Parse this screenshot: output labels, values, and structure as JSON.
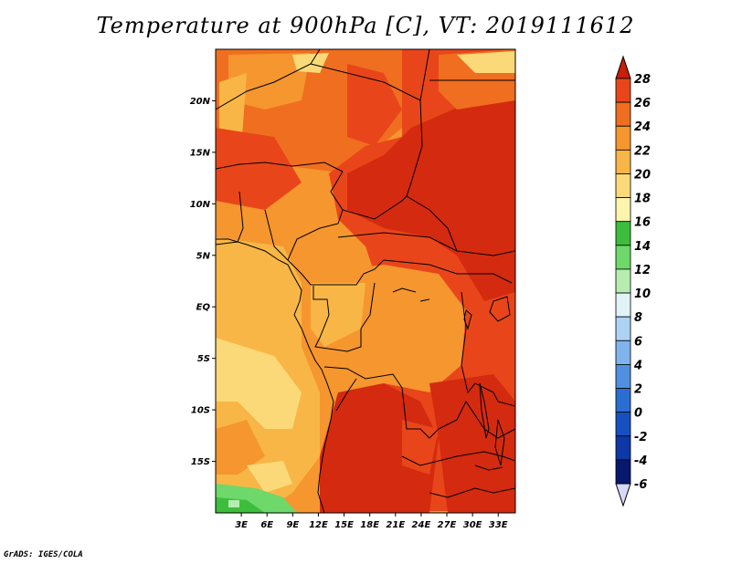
{
  "title": "Temperature at 900hPa [C], VT: 2019111612",
  "credit": "GrADS: IGES/COLA",
  "colors": {
    "c28": "#d42a10",
    "c26": "#e8461a",
    "c24": "#f06e20",
    "c22": "#f5962e",
    "c20": "#f8b646",
    "c18": "#fcd978",
    "c16": "#fdf4ae",
    "c14": "#3cbe3c",
    "c12": "#6ed86a",
    "c10": "#b6ecb0",
    "c8": "#e0f4f8",
    "c6": "#aed2f4",
    "c4": "#80b4ec",
    "c2": "#5090e0",
    "c0": "#2a6ed2",
    "cm2": "#1650c0",
    "cm4": "#0e38a8",
    "cm6": "#08186e",
    "over": "#c81e0a",
    "under": "#d8d8f8"
  },
  "chart_data": {
    "type": "heatmap",
    "variable": "Temperature at 900hPa",
    "units": "C",
    "valid_time": "2019111612",
    "lat_range": [
      -20,
      25
    ],
    "lon_range": [
      0,
      35
    ],
    "y_ticks": [
      "20N",
      "15N",
      "10N",
      "5N",
      "EQ",
      "5S",
      "10S",
      "15S"
    ],
    "y_tick_values": [
      20,
      15,
      10,
      5,
      0,
      -5,
      -10,
      -15
    ],
    "x_ticks": [
      "3E",
      "6E",
      "9E",
      "12E",
      "15E",
      "18E",
      "21E",
      "24E",
      "27E",
      "30E",
      "33E"
    ],
    "x_tick_values": [
      3,
      6,
      9,
      12,
      15,
      18,
      21,
      24,
      27,
      30,
      33
    ],
    "colorbar_levels": [
      "28",
      "26",
      "24",
      "22",
      "20",
      "18",
      "16",
      "14",
      "12",
      "10",
      "8",
      "6",
      "4",
      "2",
      "0",
      "-2",
      "-4",
      "-6"
    ],
    "colorbar_level_values": [
      28,
      26,
      24,
      22,
      20,
      18,
      16,
      14,
      12,
      10,
      8,
      6,
      4,
      2,
      0,
      -2,
      -4,
      -6
    ],
    "colorbar_colors": [
      "#e8461a",
      "#f06e20",
      "#f5962e",
      "#f8b646",
      "#fcd978",
      "#fdf4ae",
      "#3cbe3c",
      "#6ed86a",
      "#b6ecb0",
      "#e0f4f8",
      "#aed2f4",
      "#80b4ec",
      "#5090e0",
      "#2a6ed2",
      "#1650c0",
      "#0e38a8",
      "#08186e"
    ],
    "colorbar_over": "#c81e0a",
    "colorbar_under": "#d8d8f8",
    "grid": false
  }
}
